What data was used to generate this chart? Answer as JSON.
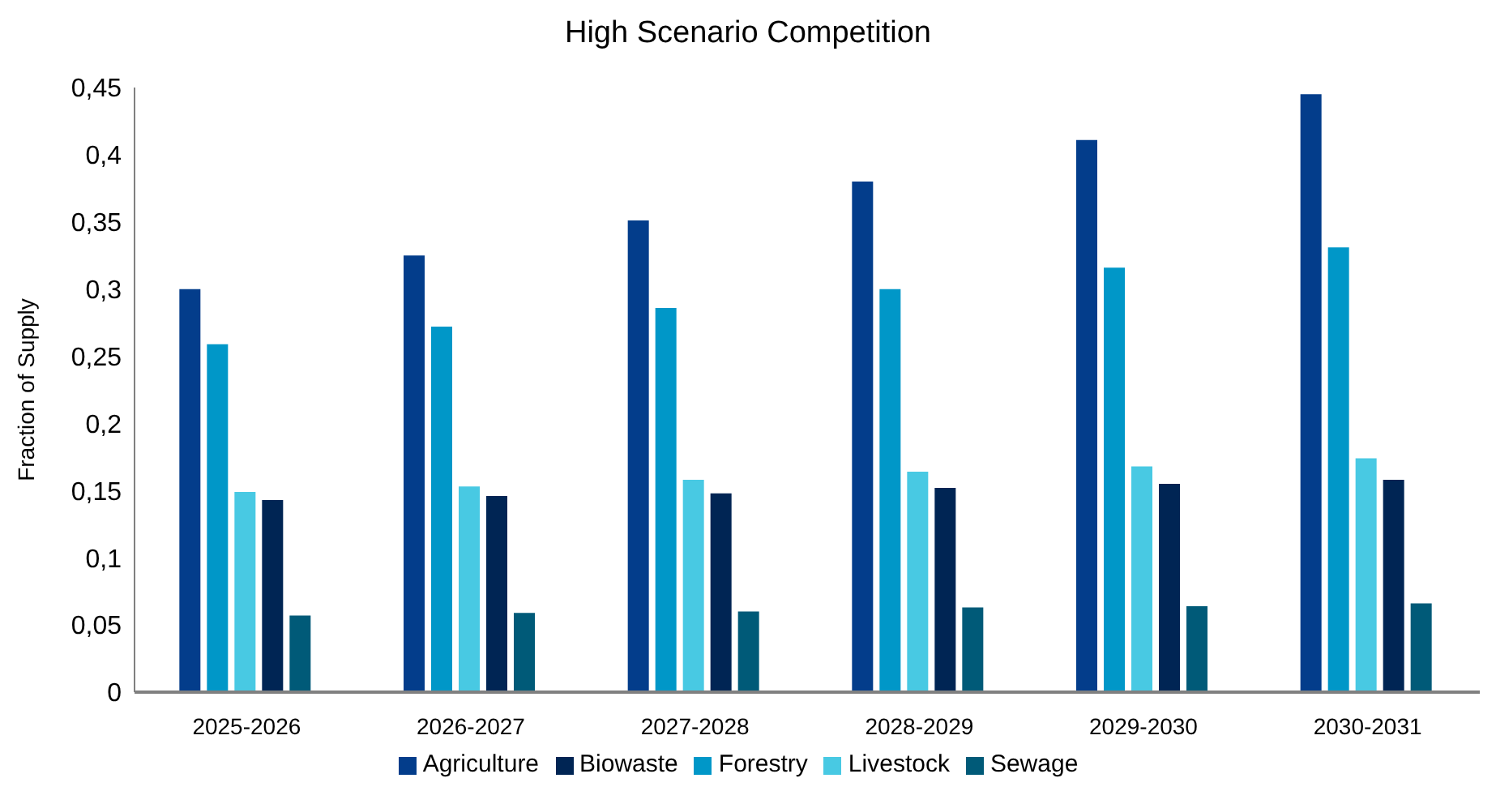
{
  "chart_data": {
    "type": "bar",
    "title": "High Scenario Competition",
    "ylabel": "Fraction of Supply",
    "categories": [
      "2025-2026",
      "2026-2027",
      "2027-2028",
      "2028-2029",
      "2029-2030",
      "2030-2031"
    ],
    "series": [
      {
        "name": "Agriculture",
        "color": "#033d8b",
        "values": [
          0.3,
          0.325,
          0.351,
          0.38,
          0.411,
          0.445
        ]
      },
      {
        "name": "Forestry",
        "color": "#0097c8",
        "values": [
          0.259,
          0.272,
          0.286,
          0.3,
          0.316,
          0.331
        ]
      },
      {
        "name": "Livestock",
        "color": "#48c9e3",
        "values": [
          0.149,
          0.153,
          0.158,
          0.164,
          0.168,
          0.174
        ]
      },
      {
        "name": "Biowaste",
        "color": "#002554",
        "values": [
          0.143,
          0.146,
          0.148,
          0.152,
          0.155,
          0.158
        ]
      },
      {
        "name": "Sewage",
        "color": "#005a78",
        "values": [
          0.057,
          0.059,
          0.06,
          0.063,
          0.064,
          0.066
        ]
      }
    ],
    "ylim": [
      0,
      0.45
    ],
    "yticks": [
      0,
      {
        "value": 0.05,
        "label": "0,05"
      },
      {
        "value": 0.1,
        "label": "0,1"
      },
      {
        "value": 0.15,
        "label": "0,15"
      },
      {
        "value": 0.2,
        "label": "0,2"
      },
      {
        "value": 0.25,
        "label": "0,25"
      },
      {
        "value": 0.3,
        "label": "0,3"
      },
      {
        "value": 0.35,
        "label": "0,35"
      },
      {
        "value": 0.4,
        "label": "0,4"
      },
      {
        "value": 0.45,
        "label": "0,45"
      }
    ],
    "grid": false,
    "legend": "bottom"
  }
}
